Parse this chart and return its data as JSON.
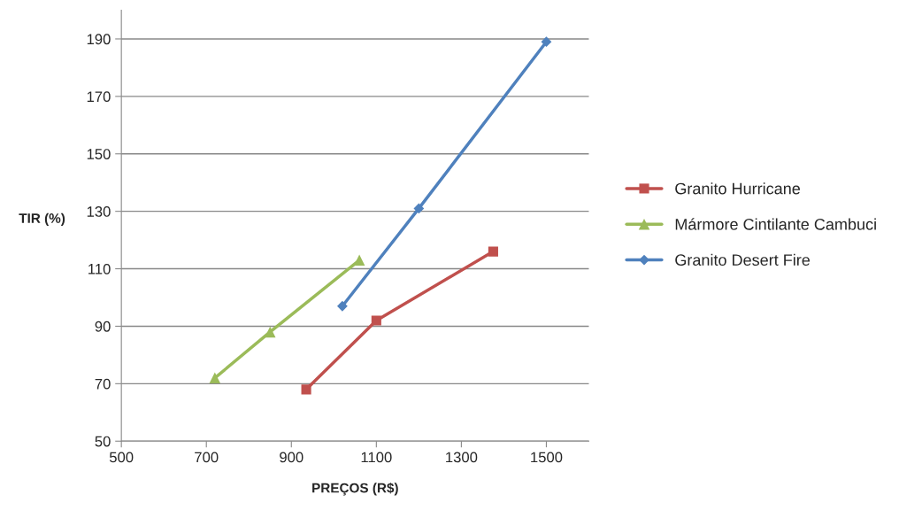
{
  "chart_data": {
    "type": "line",
    "xlabel": "PREÇOS (R$)",
    "ylabel": "TIR (%)",
    "xlim": [
      500,
      1600
    ],
    "xticks": [
      500,
      700,
      900,
      1100,
      1300,
      1500
    ],
    "ylim": [
      50,
      200
    ],
    "yticks": [
      50,
      70,
      90,
      110,
      130,
      150,
      170,
      190
    ],
    "grid": "y",
    "legend": "right",
    "line_style": "solid",
    "series": [
      {
        "name": "Granito Hurricane",
        "color": "#c0504d",
        "marker": "square",
        "x": [
          935,
          1100,
          1375
        ],
        "values": [
          68,
          92,
          116
        ]
      },
      {
        "name": "Mármore Cintilante Cambuci",
        "color": "#9bbb59",
        "marker": "triangle",
        "x": [
          720,
          850,
          1060
        ],
        "values": [
          72,
          88,
          113
        ]
      },
      {
        "name": "Granito Desert Fire",
        "color": "#4f81bd",
        "marker": "diamond",
        "x": [
          1020,
          1200,
          1500
        ],
        "values": [
          97,
          131,
          189
        ]
      }
    ]
  }
}
